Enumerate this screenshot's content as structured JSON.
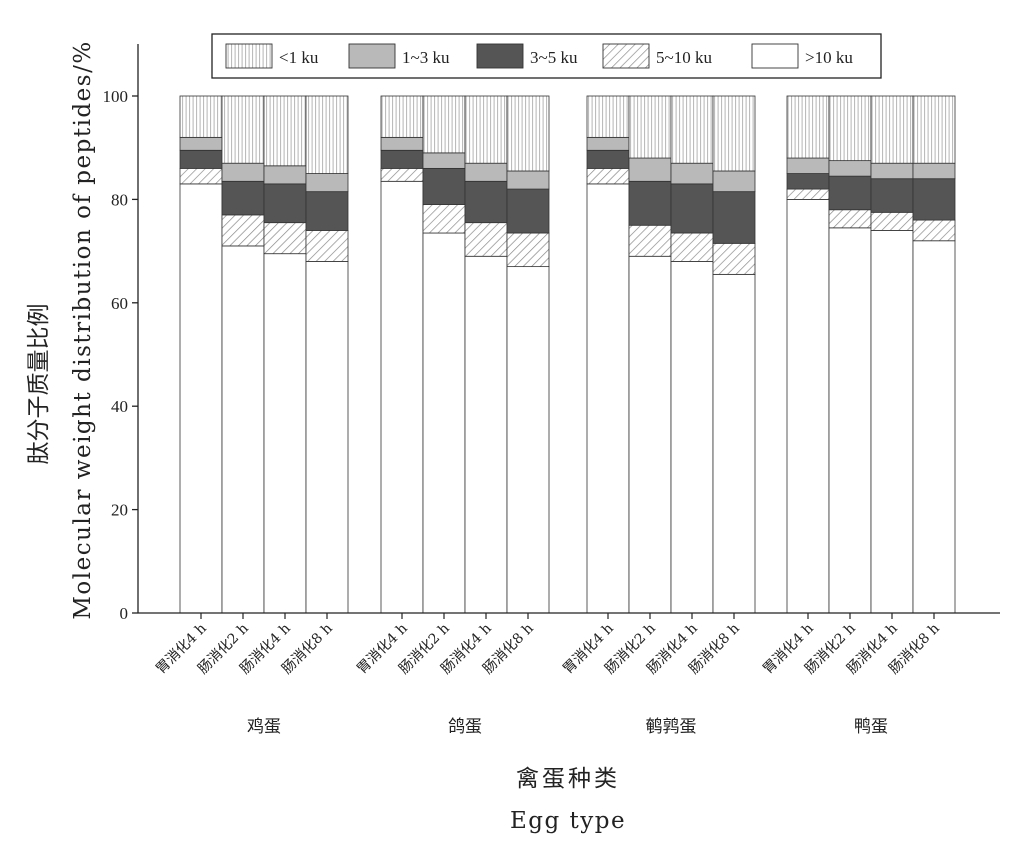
{
  "chart_data": {
    "type": "bar",
    "stacked": true,
    "ylabel_cn": "肽分子质量比例",
    "ylabel_en": "Molecular weight distribution of peptides/%",
    "xlabel_cn": "禽蛋种类",
    "xlabel_en": "Egg type",
    "ylim": [
      0,
      110
    ],
    "yticks": [
      "0",
      "20",
      "40",
      "60",
      "80",
      "100"
    ],
    "legend_position": "top-center",
    "groups": [
      {
        "name": "鸡蛋",
        "categories": [
          "胃消化4 h",
          "肠消化2 h",
          "肠消化4 h",
          "肠消化8 h"
        ]
      },
      {
        "name": "鸽蛋",
        "categories": [
          "胃消化4 h",
          "肠消化2 h",
          "肠消化4 h",
          "肠消化8 h"
        ]
      },
      {
        "name": "鹌鹑蛋",
        "categories": [
          "胃消化4 h",
          "肠消化2 h",
          "肠消化4 h",
          "肠消化8 h"
        ]
      },
      {
        "name": "鸭蛋",
        "categories": [
          "胃消化4 h",
          "肠消化2 h",
          "肠消化4 h",
          "肠消化8 h"
        ]
      }
    ],
    "series": [
      {
        "name": ">10 ku",
        "pattern": "white",
        "values": [
          83,
          71,
          69.5,
          68,
          83.5,
          73.5,
          69,
          67,
          83,
          69,
          68,
          65.5,
          80,
          74.5,
          74,
          72
        ]
      },
      {
        "name": "5~10 ku",
        "pattern": "diagonal",
        "values": [
          3,
          6,
          6,
          6,
          2.5,
          5.5,
          6.5,
          6.5,
          3,
          6,
          5.5,
          6,
          2,
          3.5,
          3.5,
          4
        ]
      },
      {
        "name": "3~5 ku",
        "pattern": "dark",
        "values": [
          3.5,
          6.5,
          7.5,
          7.5,
          3.5,
          7,
          8,
          8.5,
          3.5,
          8.5,
          9.5,
          10,
          3,
          6.5,
          6.5,
          8
        ]
      },
      {
        "name": "1~3 ku",
        "pattern": "lightgray",
        "values": [
          2.5,
          3.5,
          3.5,
          3.5,
          2.5,
          3,
          3.5,
          3.5,
          2.5,
          4.5,
          4,
          4,
          3,
          3,
          3,
          3
        ]
      },
      {
        "name": "<1 ku",
        "pattern": "vertical",
        "values": [
          8,
          13,
          13.5,
          15,
          8,
          11,
          13,
          14.5,
          8,
          12,
          13,
          14.5,
          12,
          12.5,
          13,
          13
        ]
      }
    ],
    "legend_order": [
      "<1 ku",
      "1~3 ku",
      "3~5 ku",
      "5~10 ku",
      ">10 ku"
    ]
  }
}
